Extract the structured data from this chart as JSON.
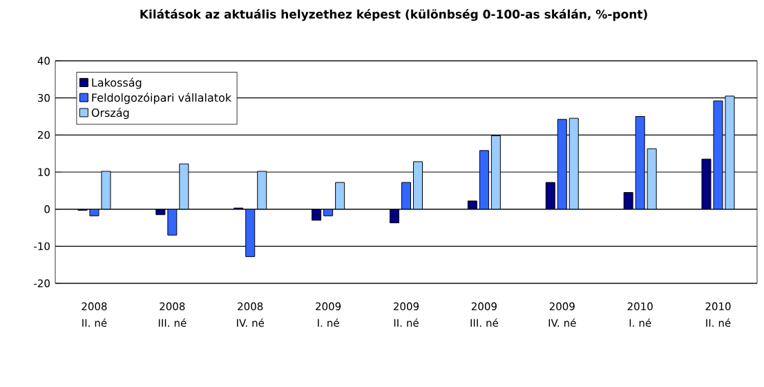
{
  "chart_data": {
    "type": "bar",
    "title": "Kilátások az aktuális helyzethez képest (különbség 0-100-as skálán, %-pont)",
    "categories": [
      "2008 II. né",
      "2008 III. né",
      "2008 IV. né",
      "2009 I. né",
      "2009 II. né",
      "2009 III. né",
      "2009 IV. né",
      "2010 I. né",
      "2010 II. né"
    ],
    "series": [
      {
        "name": "Lakosság",
        "color": "#000080",
        "values": [
          -0.3,
          -1.5,
          0.3,
          -3,
          -3.7,
          2.2,
          7.2,
          4.5,
          13.5
        ]
      },
      {
        "name": "Feldolgozóipari vállalatok",
        "color": "#3366ff",
        "values": [
          -1.8,
          -7,
          -12.8,
          -1.8,
          7.2,
          15.8,
          24.2,
          25,
          29.2
        ]
      },
      {
        "name": "Ország",
        "color": "#99ccff",
        "values": [
          10.2,
          12.2,
          10.2,
          7.2,
          12.8,
          19.8,
          24.5,
          16.3,
          30.5
        ]
      }
    ],
    "ylim": [
      -20,
      40
    ],
    "yticks": [
      -20,
      -10,
      0,
      10,
      20,
      30,
      40
    ],
    "grid": "y",
    "legend": "top left"
  }
}
